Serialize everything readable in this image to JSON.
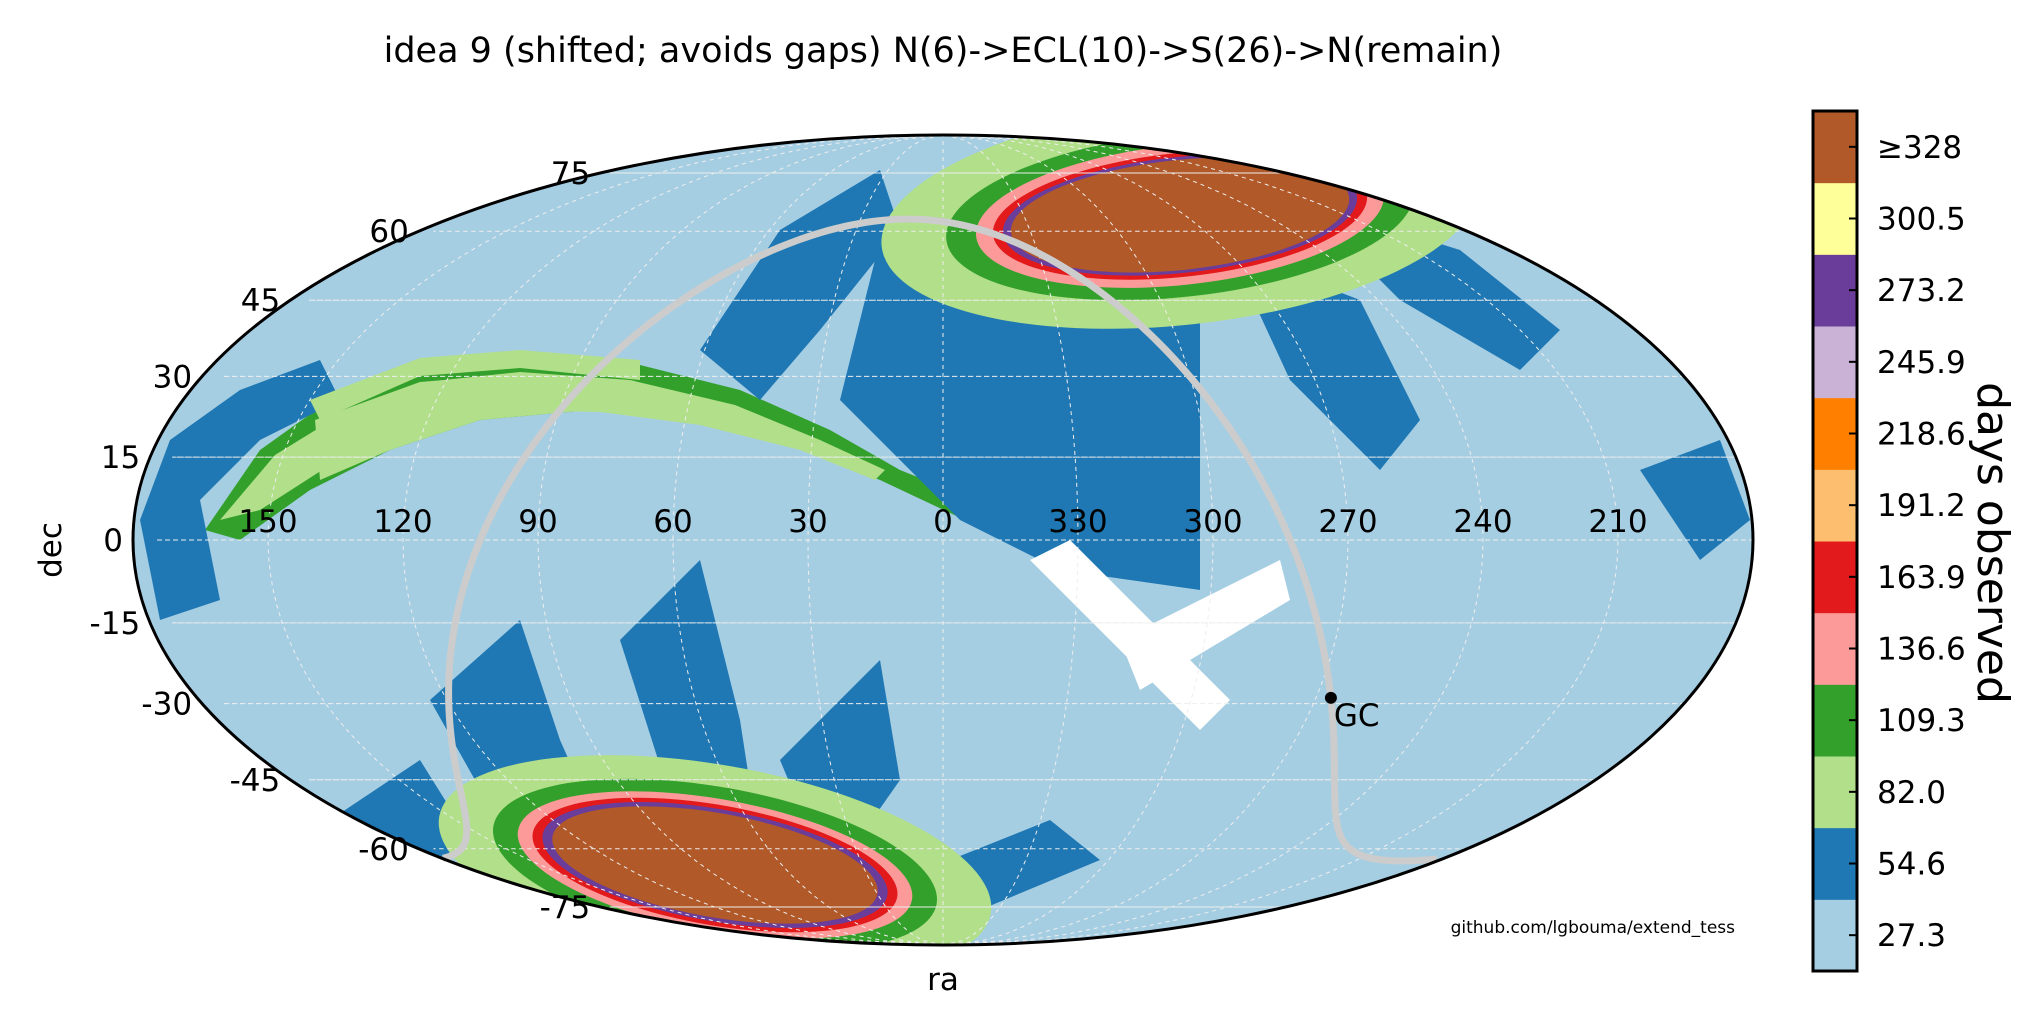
{
  "chart_data": {
    "type": "heatmap",
    "projection": "mollweide",
    "title": "idea 9 (shifted; avoids gaps) N(6)->ECL(10)->S(26)->N(remain)",
    "xlabel": "ra",
    "ylabel": "dec",
    "ra_tick_labels": [
      "150",
      "120",
      "90",
      "60",
      "30",
      "0",
      "330",
      "300",
      "270",
      "240",
      "210"
    ],
    "ra_ticks": [
      150,
      120,
      90,
      60,
      30,
      0,
      330,
      300,
      270,
      240,
      210
    ],
    "dec_tick_labels": [
      "75",
      "60",
      "45",
      "30",
      "15",
      "0",
      "-15",
      "-30",
      "-45",
      "-60",
      "-75"
    ],
    "dec_ticks": [
      75,
      60,
      45,
      30,
      15,
      0,
      -15,
      -30,
      -45,
      -60,
      -75
    ],
    "colorbar": {
      "label": "days observed",
      "tick_labels": [
        "27.3",
        "54.6",
        "82.0",
        "109.3",
        "136.6",
        "163.9",
        "191.2",
        "218.6",
        "245.9",
        "273.2",
        "300.5",
        "≥328"
      ],
      "colors": [
        "#a6cee3",
        "#1f78b4",
        "#b2df8a",
        "#33a02c",
        "#fb9a99",
        "#e31a1c",
        "#fdbf6f",
        "#ff7f00",
        "#cab2d6",
        "#6a3d9a",
        "#ffff99",
        "#b15928"
      ]
    },
    "annotation": "GC",
    "galactic_center": {
      "ra": 266.4,
      "dec": -28.9
    },
    "grid": true,
    "regions": [
      {
        "name": "north-continuous-viewing-zone",
        "center_ra": 270,
        "center_dec": 66.5,
        "days": "≥328"
      },
      {
        "name": "south-continuous-viewing-zone",
        "center_ra": 90,
        "center_dec": -66.5,
        "days": "≥328"
      },
      {
        "name": "ecliptic-band",
        "days": "27.3-109.3"
      }
    ]
  },
  "watermark": "github.com/lgbouma/extend_tess"
}
